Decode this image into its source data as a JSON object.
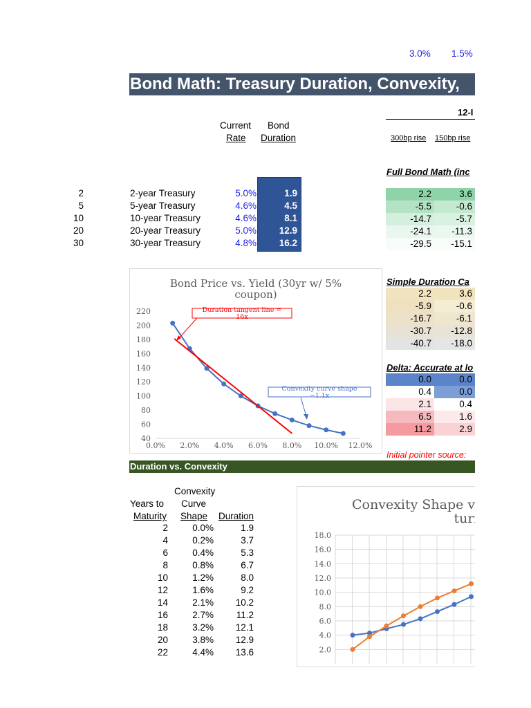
{
  "top_values": [
    "3.0%",
    "1.5%"
  ],
  "title": "Bond Math: Treasury Duration, Convexity,",
  "col_group_header": "12-I",
  "headers": {
    "current_rate_line1": "Current",
    "current_rate_line2": "Rate",
    "bond_duration_line1": "Bond",
    "bond_duration_line2": "Duration",
    "scenario1": "300bp rise",
    "scenario2": "150bp rise"
  },
  "full_bond_math_label": "Full Bond Math (inc",
  "treasuries": [
    {
      "years": "2",
      "name": "2-year Treasury",
      "rate": "5.0%",
      "duration": "1.9",
      "full1": "2.2",
      "full2": "3.6"
    },
    {
      "years": "5",
      "name": "5-year Treasury",
      "rate": "4.6%",
      "duration": "4.5",
      "full1": "-5.5",
      "full2": "-0.6"
    },
    {
      "years": "10",
      "name": "10-year Treasury",
      "rate": "4.6%",
      "duration": "8.1",
      "full1": "-14.7",
      "full2": "-5.7"
    },
    {
      "years": "20",
      "name": "20-year Treasury",
      "rate": "5.0%",
      "duration": "12.9",
      "full1": "-24.1",
      "full2": "-11.3"
    },
    {
      "years": "30",
      "name": "30-year Treasury",
      "rate": "4.8%",
      "duration": "16.2",
      "full1": "-29.5",
      "full2": "-15.1"
    }
  ],
  "simple_duration_label": "Simple Duration Ca",
  "simple_duration": [
    [
      "2.2",
      "3.6"
    ],
    [
      "-5.9",
      "-0.6"
    ],
    [
      "-16.7",
      "-6.1"
    ],
    [
      "-30.7",
      "-12.8"
    ],
    [
      "-40.7",
      "-18.0"
    ]
  ],
  "delta_label": "Delta: Accurate at lo",
  "delta": [
    [
      "0.0",
      "0.0"
    ],
    [
      "0.4",
      "0.0"
    ],
    [
      "2.1",
      "0.4"
    ],
    [
      "6.5",
      "1.6"
    ],
    [
      "11.2",
      "2.9"
    ]
  ],
  "initial_pointer": "Initial pointer source:",
  "colors": {
    "title_bar": "#44546a",
    "duration_fill": "#2f5597",
    "green_bar": "#375623",
    "price_line": "#4472c4",
    "tangent_line": "#ff0000",
    "series_orange": "#ed7d31",
    "pointer_text": "#ff0000"
  },
  "chart1": {
    "title_line1": "Bond Price vs. Yield (30yr w/ 5%",
    "title_line2": "coupon)",
    "annotation1_line1": "Duration tangent line =",
    "annotation1_line2": "16x",
    "annotation2_line1": "Convexity curve shape",
    "annotation2_line2": "~1.1x"
  },
  "section2_header": "Duration vs. Convexity",
  "table2_headers": {
    "years_line1": "Years to",
    "years_line2": "Maturity",
    "convexity_line1": "Convexity",
    "convexity_line2": "Curve",
    "convexity_line3": "Shape",
    "duration": "Duration"
  },
  "table2_rows": [
    {
      "years": "2",
      "shape": "0.0%",
      "duration": "1.9"
    },
    {
      "years": "4",
      "shape": "0.2%",
      "duration": "3.7"
    },
    {
      "years": "6",
      "shape": "0.4%",
      "duration": "5.3"
    },
    {
      "years": "8",
      "shape": "0.8%",
      "duration": "6.7"
    },
    {
      "years": "10",
      "shape": "1.2%",
      "duration": "8.0"
    },
    {
      "years": "12",
      "shape": "1.6%",
      "duration": "9.2"
    },
    {
      "years": "14",
      "shape": "2.1%",
      "duration": "10.2"
    },
    {
      "years": "16",
      "shape": "2.7%",
      "duration": "11.2"
    },
    {
      "years": "18",
      "shape": "3.2%",
      "duration": "12.1"
    },
    {
      "years": "20",
      "shape": "3.8%",
      "duration": "12.9"
    },
    {
      "years": "22",
      "shape": "4.4%",
      "duration": "13.6"
    }
  ],
  "chart2": {
    "title_line1": "Convexity Shape vs.",
    "title_line2": "turi"
  },
  "chart_data": [
    {
      "type": "line",
      "title": "Bond Price vs. Yield (30yr w/ 5% coupon)",
      "xlabel": "",
      "ylabel": "",
      "xlim": [
        0,
        12
      ],
      "ylim": [
        40,
        220
      ],
      "x_ticks": [
        "0.0%",
        "2.0%",
        "4.0%",
        "6.0%",
        "8.0%",
        "10.0%",
        "12.0%"
      ],
      "y_ticks": [
        "40",
        "60",
        "80",
        "100",
        "120",
        "140",
        "160",
        "180",
        "200",
        "220"
      ],
      "grid": false,
      "series": [
        {
          "name": "",
          "color": "#4472c4",
          "x": [
            1,
            2,
            3,
            4,
            5,
            6,
            7,
            8,
            9,
            10,
            11
          ],
          "y": [
            203,
            167,
            139,
            117,
            100,
            86,
            75,
            66,
            58,
            52,
            47
          ]
        },
        {
          "name": "",
          "color": "#ff0000",
          "x": [
            1.1,
            8
          ],
          "y": [
            181,
            47
          ],
          "style": "tangent"
        }
      ]
    },
    {
      "type": "line",
      "title": "Convexity Shape vs. turi",
      "xlabel": "",
      "ylabel": "",
      "ylim": [
        0,
        18
      ],
      "y_ticks": [
        "2.0",
        "4.0",
        "6.0",
        "8.0",
        "10.0",
        "12.0",
        "14.0",
        "16.0",
        "18.0"
      ],
      "grid": true,
      "series": [
        {
          "name": "",
          "color": "#4472c4",
          "x": [
            1,
            2,
            3,
            4,
            5,
            6,
            7,
            8
          ],
          "y": [
            4.0,
            4.3,
            4.9,
            5.5,
            6.3,
            7.3,
            8.3,
            9.4
          ]
        },
        {
          "name": "",
          "color": "#ed7d31",
          "x": [
            1,
            2,
            3,
            4,
            5,
            6,
            7,
            8
          ],
          "y": [
            2.0,
            3.8,
            5.3,
            6.7,
            8.0,
            9.2,
            10.2,
            11.2
          ]
        }
      ]
    }
  ]
}
